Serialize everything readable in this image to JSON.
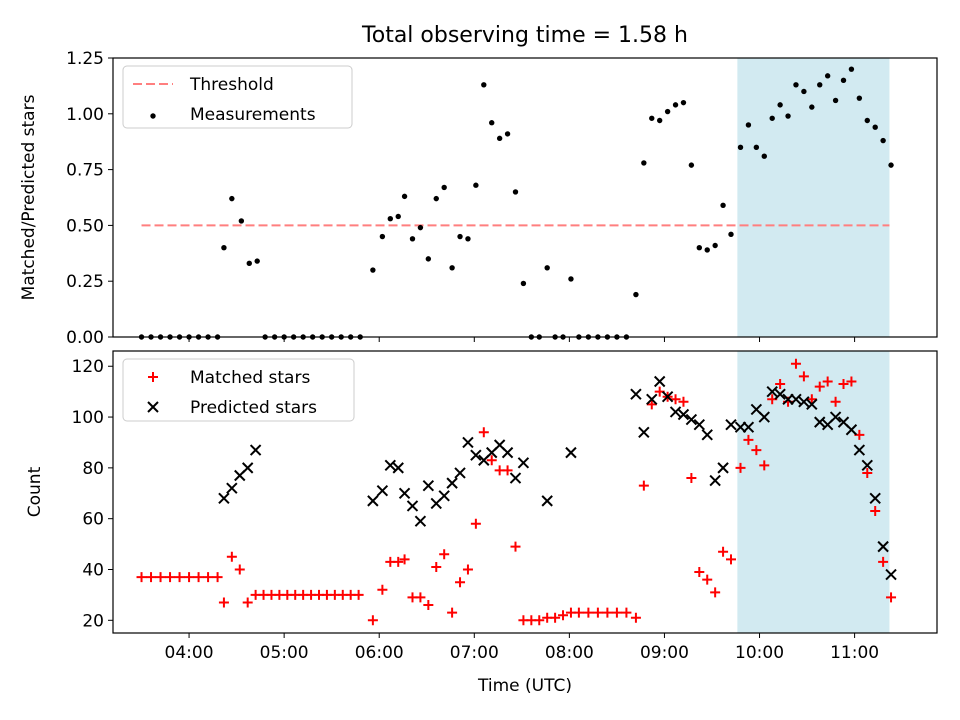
{
  "title": "Total observing time = 1.58 h",
  "colors": {
    "threshold": "#ff7f7f",
    "measurements": "#000000",
    "matched": "#ff0000",
    "predicted": "#000000",
    "highlight": "#add8e6"
  },
  "chart_data": [
    {
      "type": "scatter",
      "ylabel": "Matched/Predicted stars",
      "xlabel": "",
      "ylim": [
        0,
        1.25
      ],
      "xlim": [
        "03:12",
        "11:52"
      ],
      "yticks": [
        "0.00",
        "0.25",
        "0.50",
        "0.75",
        "1.00",
        "1.25"
      ],
      "legend_position": "top-left",
      "legend": [
        "Threshold",
        "Measurements"
      ],
      "highlight_span": [
        "09:46",
        "11:22"
      ],
      "threshold": {
        "name": "Threshold",
        "value": 0.5,
        "x_range": [
          "03:30",
          "11:22"
        ]
      },
      "series": [
        {
          "name": "Measurements",
          "points": [
            [
              "03:30",
              0
            ],
            [
              "03:36",
              0
            ],
            [
              "03:42",
              0
            ],
            [
              "03:48",
              0
            ],
            [
              "03:54",
              0
            ],
            [
              "04:00",
              0
            ],
            [
              "04:06",
              0
            ],
            [
              "04:12",
              0
            ],
            [
              "04:18",
              0
            ],
            [
              "04:22",
              0.4
            ],
            [
              "04:27",
              0.62
            ],
            [
              "04:33",
              0.52
            ],
            [
              "04:38",
              0.33
            ],
            [
              "04:43",
              0.34
            ],
            [
              "04:48",
              0
            ],
            [
              "04:54",
              0
            ],
            [
              "05:00",
              0
            ],
            [
              "05:06",
              0
            ],
            [
              "05:12",
              0
            ],
            [
              "05:18",
              0
            ],
            [
              "05:24",
              0
            ],
            [
              "05:30",
              0
            ],
            [
              "05:36",
              0
            ],
            [
              "05:42",
              0
            ],
            [
              "05:48",
              0
            ],
            [
              "05:56",
              0.3
            ],
            [
              "06:02",
              0.45
            ],
            [
              "06:07",
              0.53
            ],
            [
              "06:12",
              0.54
            ],
            [
              "06:16",
              0.63
            ],
            [
              "06:21",
              0.44
            ],
            [
              "06:26",
              0.49
            ],
            [
              "06:31",
              0.35
            ],
            [
              "06:36",
              0.62
            ],
            [
              "06:41",
              0.67
            ],
            [
              "06:46",
              0.31
            ],
            [
              "06:51",
              0.45
            ],
            [
              "06:56",
              0.44
            ],
            [
              "07:01",
              0.68
            ],
            [
              "07:06",
              1.13
            ],
            [
              "07:11",
              0.96
            ],
            [
              "07:16",
              0.89
            ],
            [
              "07:21",
              0.91
            ],
            [
              "07:26",
              0.65
            ],
            [
              "07:31",
              0.24
            ],
            [
              "07:36",
              0
            ],
            [
              "07:41",
              0
            ],
            [
              "07:46",
              0.31
            ],
            [
              "07:51",
              0
            ],
            [
              "07:56",
              0
            ],
            [
              "08:01",
              0.26
            ],
            [
              "08:06",
              0
            ],
            [
              "08:12",
              0
            ],
            [
              "08:18",
              0
            ],
            [
              "08:24",
              0
            ],
            [
              "08:30",
              0
            ],
            [
              "08:36",
              0
            ],
            [
              "08:42",
              0.19
            ],
            [
              "08:47",
              0.78
            ],
            [
              "08:52",
              0.98
            ],
            [
              "08:57",
              0.97
            ],
            [
              "09:02",
              1.01
            ],
            [
              "09:07",
              1.04
            ],
            [
              "09:12",
              1.05
            ],
            [
              "09:17",
              0.77
            ],
            [
              "09:22",
              0.4
            ],
            [
              "09:27",
              0.39
            ],
            [
              "09:32",
              0.41
            ],
            [
              "09:37",
              0.59
            ],
            [
              "09:42",
              0.46
            ],
            [
              "09:48",
              0.85
            ],
            [
              "09:53",
              0.95
            ],
            [
              "09:58",
              0.85
            ],
            [
              "10:03",
              0.81
            ],
            [
              "10:08",
              0.98
            ],
            [
              "10:13",
              1.04
            ],
            [
              "10:18",
              0.99
            ],
            [
              "10:23",
              1.13
            ],
            [
              "10:28",
              1.1
            ],
            [
              "10:33",
              1.03
            ],
            [
              "10:38",
              1.13
            ],
            [
              "10:43",
              1.17
            ],
            [
              "10:48",
              1.06
            ],
            [
              "10:53",
              1.15
            ],
            [
              "10:58",
              1.2
            ],
            [
              "11:03",
              1.07
            ],
            [
              "11:08",
              0.97
            ],
            [
              "11:13",
              0.94
            ],
            [
              "11:18",
              0.88
            ],
            [
              "11:23",
              0.77
            ]
          ]
        }
      ]
    },
    {
      "type": "scatter",
      "ylabel": "Count",
      "xlabel": "Time (UTC)",
      "ylim": [
        15,
        126
      ],
      "xlim": [
        "03:12",
        "11:52"
      ],
      "yticks": [
        "20",
        "40",
        "60",
        "80",
        "100",
        "120"
      ],
      "xticks": [
        "04:00",
        "05:00",
        "06:00",
        "07:00",
        "08:00",
        "09:00",
        "10:00",
        "11:00"
      ],
      "legend_position": "top-left",
      "legend": [
        "Matched stars",
        "Predicted stars"
      ],
      "highlight_span": [
        "09:46",
        "11:22"
      ],
      "series": [
        {
          "name": "Matched stars",
          "marker": "plus",
          "points": [
            [
              "03:30",
              37
            ],
            [
              "03:36",
              37
            ],
            [
              "03:42",
              37
            ],
            [
              "03:48",
              37
            ],
            [
              "03:54",
              37
            ],
            [
              "04:00",
              37
            ],
            [
              "04:06",
              37
            ],
            [
              "04:12",
              37
            ],
            [
              "04:18",
              37
            ],
            [
              "04:22",
              27
            ],
            [
              "04:27",
              45
            ],
            [
              "04:32",
              40
            ],
            [
              "04:37",
              27
            ],
            [
              "04:42",
              30
            ],
            [
              "04:47",
              30
            ],
            [
              "04:52",
              30
            ],
            [
              "04:57",
              30
            ],
            [
              "05:02",
              30
            ],
            [
              "05:07",
              30
            ],
            [
              "05:12",
              30
            ],
            [
              "05:17",
              30
            ],
            [
              "05:22",
              30
            ],
            [
              "05:27",
              30
            ],
            [
              "05:32",
              30
            ],
            [
              "05:37",
              30
            ],
            [
              "05:42",
              30
            ],
            [
              "05:47",
              30
            ],
            [
              "05:56",
              20
            ],
            [
              "06:02",
              32
            ],
            [
              "06:07",
              43
            ],
            [
              "06:12",
              43
            ],
            [
              "06:16",
              44
            ],
            [
              "06:21",
              29
            ],
            [
              "06:26",
              29
            ],
            [
              "06:31",
              26
            ],
            [
              "06:36",
              41
            ],
            [
              "06:41",
              46
            ],
            [
              "06:46",
              23
            ],
            [
              "06:51",
              35
            ],
            [
              "06:56",
              40
            ],
            [
              "07:01",
              58
            ],
            [
              "07:06",
              94
            ],
            [
              "07:11",
              83
            ],
            [
              "07:16",
              79
            ],
            [
              "07:21",
              79
            ],
            [
              "07:26",
              49
            ],
            [
              "07:31",
              20
            ],
            [
              "07:36",
              20
            ],
            [
              "07:41",
              20
            ],
            [
              "07:46",
              21
            ],
            [
              "07:51",
              21
            ],
            [
              "07:56",
              22
            ],
            [
              "08:01",
              23
            ],
            [
              "08:06",
              23
            ],
            [
              "08:12",
              23
            ],
            [
              "08:18",
              23
            ],
            [
              "08:24",
              23
            ],
            [
              "08:30",
              23
            ],
            [
              "08:36",
              23
            ],
            [
              "08:42",
              21
            ],
            [
              "08:47",
              73
            ],
            [
              "08:52",
              105
            ],
            [
              "08:57",
              110
            ],
            [
              "09:02",
              108
            ],
            [
              "09:07",
              107
            ],
            [
              "09:12",
              106
            ],
            [
              "09:17",
              76
            ],
            [
              "09:22",
              39
            ],
            [
              "09:27",
              36
            ],
            [
              "09:32",
              31
            ],
            [
              "09:37",
              47
            ],
            [
              "09:42",
              44
            ],
            [
              "09:48",
              80
            ],
            [
              "09:53",
              91
            ],
            [
              "09:58",
              87
            ],
            [
              "10:03",
              81
            ],
            [
              "10:08",
              107
            ],
            [
              "10:13",
              113
            ],
            [
              "10:18",
              106
            ],
            [
              "10:23",
              121
            ],
            [
              "10:28",
              116
            ],
            [
              "10:33",
              107
            ],
            [
              "10:38",
              112
            ],
            [
              "10:43",
              114
            ],
            [
              "10:48",
              106
            ],
            [
              "10:53",
              113
            ],
            [
              "10:58",
              114
            ],
            [
              "11:03",
              93
            ],
            [
              "11:08",
              78
            ],
            [
              "11:13",
              63
            ],
            [
              "11:18",
              43
            ],
            [
              "11:23",
              29
            ]
          ]
        },
        {
          "name": "Predicted stars",
          "marker": "x",
          "points": [
            [
              "04:22",
              68
            ],
            [
              "04:27",
              72
            ],
            [
              "04:32",
              77
            ],
            [
              "04:37",
              80
            ],
            [
              "04:42",
              87
            ],
            [
              "05:56",
              67
            ],
            [
              "06:02",
              71
            ],
            [
              "06:07",
              81
            ],
            [
              "06:12",
              80
            ],
            [
              "06:16",
              70
            ],
            [
              "06:21",
              65
            ],
            [
              "06:26",
              59
            ],
            [
              "06:31",
              73
            ],
            [
              "06:36",
              66
            ],
            [
              "06:41",
              69
            ],
            [
              "06:46",
              74
            ],
            [
              "06:51",
              78
            ],
            [
              "06:56",
              90
            ],
            [
              "07:01",
              85
            ],
            [
              "07:06",
              83
            ],
            [
              "07:11",
              86
            ],
            [
              "07:16",
              89
            ],
            [
              "07:21",
              86
            ],
            [
              "07:26",
              76
            ],
            [
              "07:31",
              82
            ],
            [
              "07:46",
              67
            ],
            [
              "08:01",
              86
            ],
            [
              "08:42",
              109
            ],
            [
              "08:47",
              94
            ],
            [
              "08:52",
              107
            ],
            [
              "08:57",
              114
            ],
            [
              "09:02",
              108
            ],
            [
              "09:07",
              102
            ],
            [
              "09:12",
              101
            ],
            [
              "09:17",
              99
            ],
            [
              "09:22",
              97
            ],
            [
              "09:27",
              93
            ],
            [
              "09:32",
              75
            ],
            [
              "09:37",
              80
            ],
            [
              "09:42",
              97
            ],
            [
              "09:48",
              96
            ],
            [
              "09:53",
              96
            ],
            [
              "09:58",
              103
            ],
            [
              "10:03",
              100
            ],
            [
              "10:08",
              110
            ],
            [
              "10:13",
              109
            ],
            [
              "10:18",
              107
            ],
            [
              "10:23",
              107
            ],
            [
              "10:28",
              106
            ],
            [
              "10:33",
              105
            ],
            [
              "10:38",
              98
            ],
            [
              "10:43",
              97
            ],
            [
              "10:48",
              100
            ],
            [
              "10:53",
              98
            ],
            [
              "10:58",
              95
            ],
            [
              "11:03",
              87
            ],
            [
              "11:08",
              81
            ],
            [
              "11:13",
              68
            ],
            [
              "11:18",
              49
            ],
            [
              "11:23",
              38
            ]
          ]
        }
      ]
    }
  ]
}
